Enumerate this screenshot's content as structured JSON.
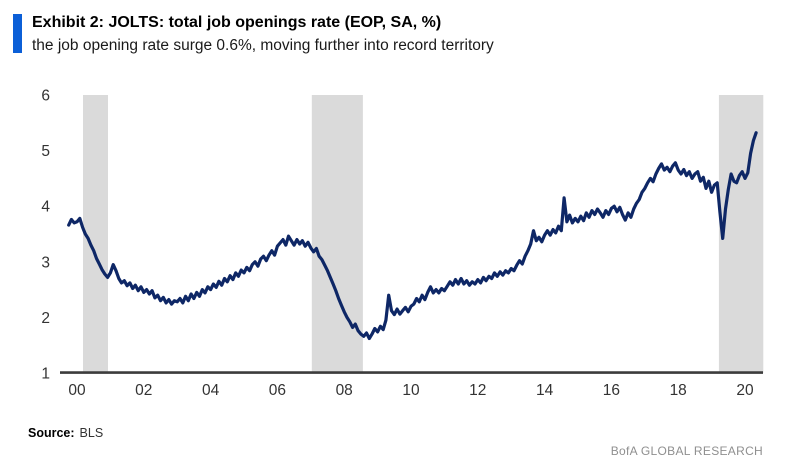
{
  "header": {
    "title": "Exhibit 2: JOLTS: total job openings rate (EOP, SA, %)",
    "subtitle": "the job opening rate surge 0.6%, moving further into record territory",
    "accent_color": "#0b5fd7"
  },
  "footer": {
    "source_label": "Source:",
    "source_value": "BLS",
    "branding": "BofA GLOBAL RESEARCH"
  },
  "chart_data": {
    "type": "line",
    "title": "JOLTS: total job openings rate (EOP, SA, %)",
    "xlabel": "",
    "ylabel": "",
    "ylim": [
      1,
      6
    ],
    "y_ticks": [
      1,
      2,
      3,
      4,
      5,
      6
    ],
    "x_tick_labels": [
      "00",
      "02",
      "04",
      "06",
      "08",
      "10",
      "12",
      "14",
      "16",
      "18",
      "20"
    ],
    "x_tick_t": [
      0,
      2,
      4,
      6,
      8,
      10,
      12,
      14,
      16,
      18,
      20
    ],
    "grid": false,
    "legend": "none",
    "line_color": "#0e2766",
    "band_color": "#dadada",
    "axis_color": "#3c3c3c",
    "tick_label_color": "#333333",
    "recession_bands_t": [
      [
        0.18,
        0.93
      ],
      [
        7.03,
        8.56
      ],
      [
        19.22,
        20.55
      ]
    ],
    "series_name": "Total job openings rate (EOP, SA, %)",
    "start_t": -0.25,
    "points_per_year": 12,
    "values": [
      3.66,
      3.76,
      3.7,
      3.72,
      3.78,
      3.62,
      3.5,
      3.42,
      3.3,
      3.2,
      3.06,
      2.96,
      2.86,
      2.78,
      2.72,
      2.8,
      2.95,
      2.84,
      2.7,
      2.62,
      2.66,
      2.57,
      2.62,
      2.52,
      2.58,
      2.48,
      2.55,
      2.45,
      2.5,
      2.42,
      2.48,
      2.35,
      2.4,
      2.3,
      2.36,
      2.26,
      2.32,
      2.24,
      2.3,
      2.28,
      2.34,
      2.26,
      2.38,
      2.3,
      2.42,
      2.34,
      2.45,
      2.38,
      2.5,
      2.44,
      2.55,
      2.5,
      2.6,
      2.54,
      2.65,
      2.58,
      2.7,
      2.64,
      2.75,
      2.68,
      2.8,
      2.74,
      2.85,
      2.8,
      2.9,
      2.84,
      2.95,
      3.0,
      2.92,
      3.05,
      3.1,
      3.02,
      3.12,
      3.2,
      3.12,
      3.28,
      3.34,
      3.4,
      3.3,
      3.46,
      3.38,
      3.3,
      3.4,
      3.32,
      3.38,
      3.28,
      3.35,
      3.25,
      3.18,
      3.24,
      3.1,
      3.04,
      2.94,
      2.84,
      2.72,
      2.6,
      2.48,
      2.34,
      2.22,
      2.1,
      2.0,
      1.92,
      1.82,
      1.88,
      1.76,
      1.7,
      1.66,
      1.72,
      1.62,
      1.7,
      1.8,
      1.74,
      1.84,
      1.78,
      1.95,
      2.4,
      2.12,
      2.05,
      2.15,
      2.06,
      2.12,
      2.18,
      2.1,
      2.2,
      2.24,
      2.34,
      2.28,
      2.4,
      2.32,
      2.45,
      2.55,
      2.44,
      2.5,
      2.44,
      2.52,
      2.48,
      2.56,
      2.64,
      2.58,
      2.68,
      2.6,
      2.7,
      2.6,
      2.66,
      2.58,
      2.64,
      2.6,
      2.68,
      2.62,
      2.72,
      2.66,
      2.74,
      2.7,
      2.8,
      2.74,
      2.82,
      2.76,
      2.84,
      2.8,
      2.88,
      2.84,
      2.94,
      3.02,
      2.96,
      3.1,
      3.2,
      3.32,
      3.56,
      3.38,
      3.44,
      3.36,
      3.48,
      3.56,
      3.48,
      3.58,
      3.52,
      3.64,
      3.56,
      4.15,
      3.72,
      3.84,
      3.7,
      3.78,
      3.72,
      3.82,
      3.74,
      3.88,
      3.8,
      3.92,
      3.85,
      3.95,
      3.88,
      3.8,
      3.92,
      3.85,
      3.96,
      4.0,
      3.9,
      3.98,
      3.85,
      3.75,
      3.88,
      3.8,
      3.95,
      4.05,
      4.12,
      4.25,
      4.32,
      4.42,
      4.5,
      4.44,
      4.58,
      4.68,
      4.76,
      4.65,
      4.7,
      4.62,
      4.72,
      4.78,
      4.65,
      4.58,
      4.66,
      4.55,
      4.62,
      4.5,
      4.58,
      4.62,
      4.45,
      4.52,
      4.32,
      4.45,
      4.25,
      4.38,
      4.42,
      3.9,
      3.42,
      3.95,
      4.3,
      4.58,
      4.45,
      4.42,
      4.55,
      4.62,
      4.5,
      4.6,
      4.95,
      5.18,
      5.32
    ]
  }
}
